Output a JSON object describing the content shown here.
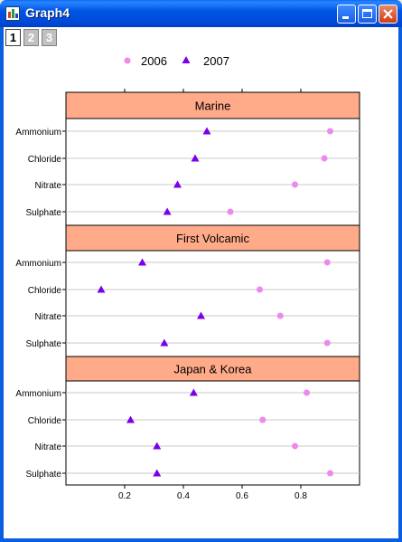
{
  "window": {
    "title": "Graph4"
  },
  "page_tabs": [
    {
      "label": "1",
      "active": true
    },
    {
      "label": "2",
      "active": false
    },
    {
      "label": "3",
      "active": false
    }
  ],
  "colors": {
    "panel_header": "#ffaa88",
    "series_2006": "#ee88ee",
    "series_2007": "#7a00e8"
  },
  "legend": [
    {
      "label": "2006",
      "marker": "circle"
    },
    {
      "label": "2007",
      "marker": "triangle"
    }
  ],
  "chart_data": {
    "type": "scatter",
    "xlim": [
      0,
      1
    ],
    "xticks": [
      "0.2",
      "0.4",
      "0.6",
      "0.8"
    ],
    "xtick_values": [
      0.2,
      0.4,
      0.6,
      0.8
    ],
    "categories": [
      "Ammonium",
      "Chloride",
      "Nitrate",
      "Sulphate"
    ],
    "grid": "horizontal",
    "legend_position": "top",
    "panels": [
      {
        "title": "Marine",
        "series": [
          {
            "name": "2006",
            "values": [
              0.9,
              0.88,
              0.78,
              0.56
            ]
          },
          {
            "name": "2007",
            "values": [
              0.48,
              0.44,
              0.38,
              0.345
            ]
          }
        ]
      },
      {
        "title": "First Volcamic",
        "series": [
          {
            "name": "2006",
            "values": [
              0.89,
              0.66,
              0.73,
              0.89
            ]
          },
          {
            "name": "2007",
            "values": [
              0.26,
              0.12,
              0.46,
              0.335
            ]
          }
        ]
      },
      {
        "title": "Japan & Korea",
        "series": [
          {
            "name": "2006",
            "values": [
              0.82,
              0.67,
              0.78,
              0.9
            ]
          },
          {
            "name": "2007",
            "values": [
              0.435,
              0.22,
              0.31,
              0.31
            ]
          }
        ]
      }
    ]
  }
}
